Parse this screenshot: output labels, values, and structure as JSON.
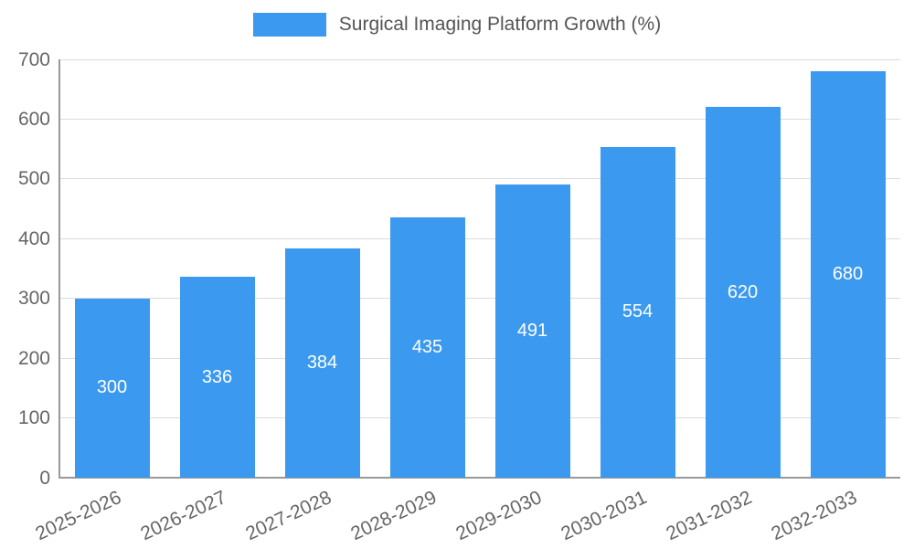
{
  "chart_data": {
    "type": "bar",
    "title": "Surgical Imaging Platform Growth (%)",
    "categories": [
      "2025-2026",
      "2026-2027",
      "2027-2028",
      "2028-2029",
      "2029-2030",
      "2030-2031",
      "2031-2032",
      "2032-2033"
    ],
    "values": [
      300,
      336,
      384,
      435,
      491,
      554,
      620,
      680
    ],
    "xlabel": "",
    "ylabel": "",
    "ylim": [
      0,
      700
    ],
    "ytick_step": 100,
    "grid": true,
    "legend_position": "top-center",
    "colors": {
      "bar": "#3b99ef",
      "bar_value_label": "#ffffff",
      "axis_text": "#666666",
      "gridline": "#dcdcdc",
      "axis_line": "#999999",
      "background": "#ffffff",
      "legend_text": "#555555"
    }
  }
}
